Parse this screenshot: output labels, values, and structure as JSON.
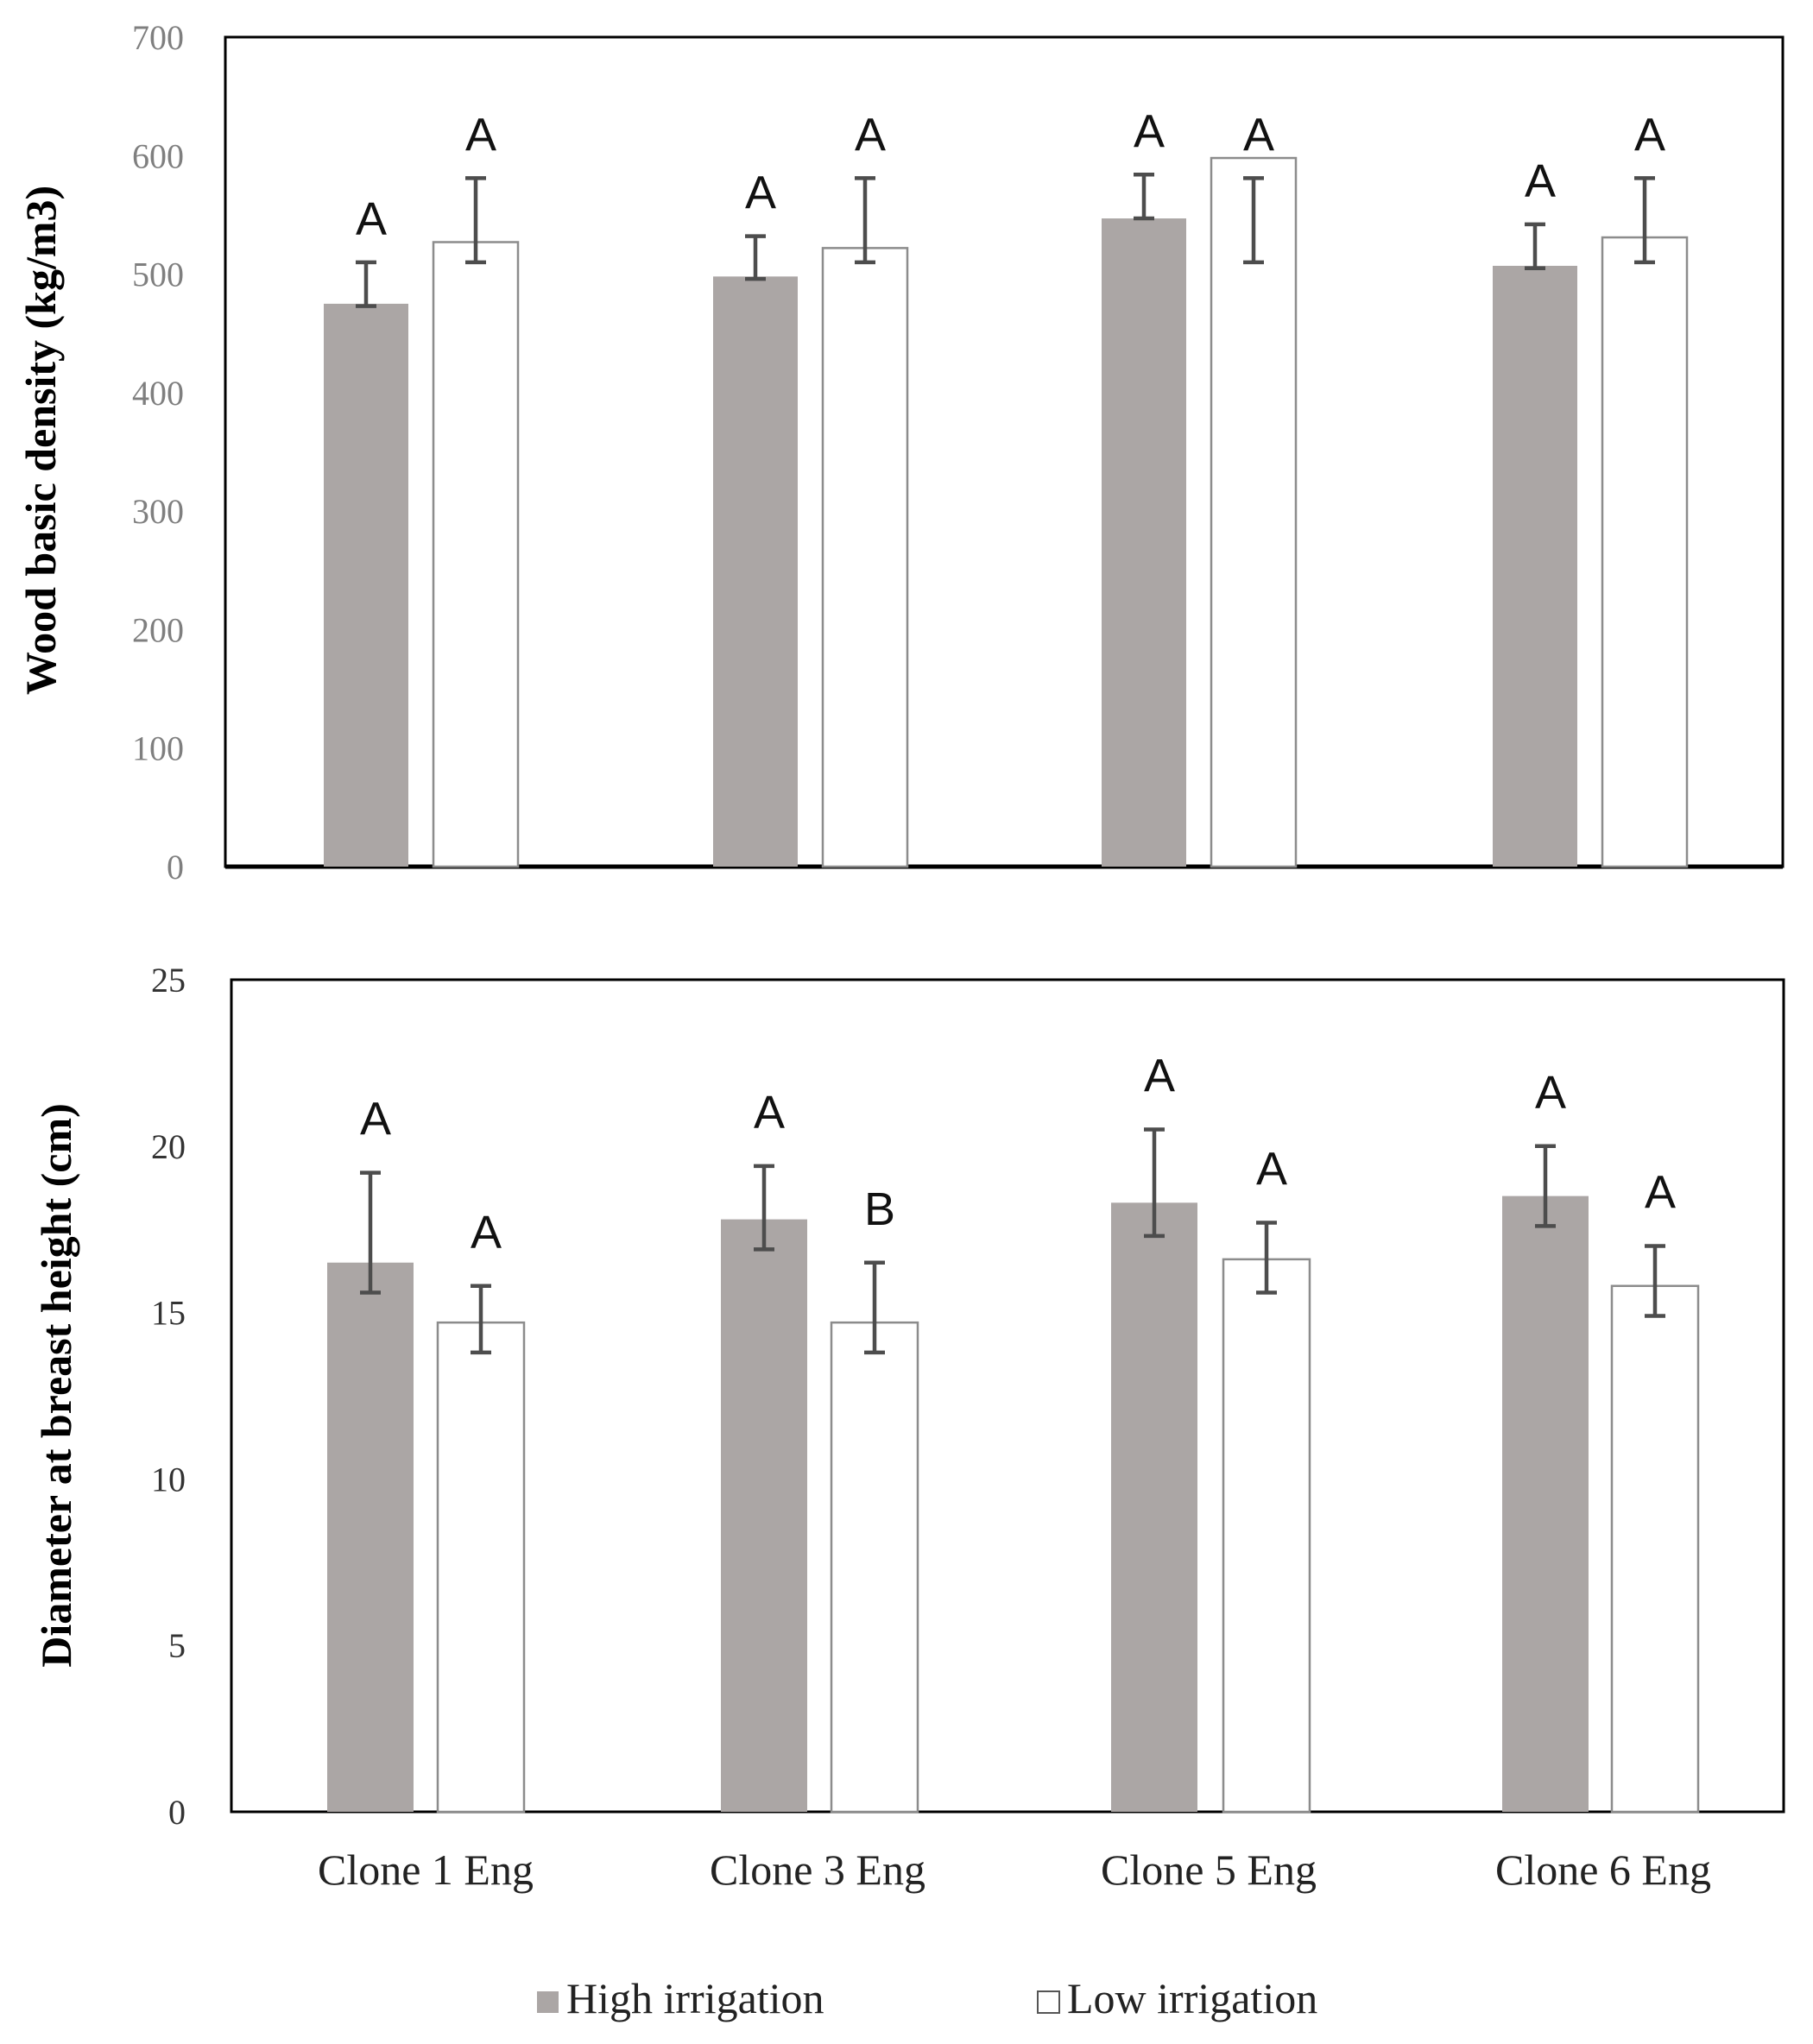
{
  "chart_data": [
    {
      "type": "bar",
      "ylabel": "Wood basic density (kg/m3)",
      "ylim": [
        0,
        700
      ],
      "yticks": [
        "0",
        "100",
        "200",
        "300",
        "400",
        "500",
        "600",
        "700"
      ],
      "categories": [
        "Clone 1 Eng",
        "Clone 3 Eng",
        "Clone 5 Eng",
        "Clone 6 Eng"
      ],
      "series": [
        {
          "name": "High irrigation",
          "color": "#aba6a5",
          "values": [
            475,
            498,
            547,
            507
          ],
          "err_low": [
            473,
            496,
            547,
            505
          ],
          "err_high": [
            510,
            532,
            584,
            542
          ],
          "letters": [
            "A",
            "A",
            "A",
            "A"
          ]
        },
        {
          "name": "Low irrigation",
          "color": "#ffffff",
          "values": [
            527,
            522,
            598,
            531
          ],
          "err_low": [
            510,
            510,
            510,
            510
          ],
          "err_high": [
            581,
            581,
            581,
            581
          ],
          "letters": [
            "A",
            "A",
            "A",
            "A"
          ]
        }
      ]
    },
    {
      "type": "bar",
      "ylabel": "Diameter at breast height (cm)",
      "ylim": [
        0,
        25
      ],
      "yticks": [
        "0",
        "5",
        "10",
        "15",
        "20",
        "25"
      ],
      "categories": [
        "Clone 1 Eng",
        "Clone 3 Eng",
        "Clone 5 Eng",
        "Clone 6 Eng"
      ],
      "series": [
        {
          "name": "High irrigation",
          "color": "#aba6a5",
          "values": [
            16.5,
            17.8,
            18.3,
            18.5
          ],
          "err_low": [
            15.6,
            16.9,
            17.3,
            17.6
          ],
          "err_high": [
            19.2,
            19.4,
            20.5,
            20.0
          ],
          "letters": [
            "A",
            "A",
            "A",
            "A"
          ]
        },
        {
          "name": "Low irrigation",
          "color": "#ffffff",
          "values": [
            14.7,
            14.7,
            16.6,
            15.8
          ],
          "err_low": [
            13.8,
            13.8,
            15.6,
            14.9
          ],
          "err_high": [
            15.8,
            16.5,
            17.7,
            17.0
          ],
          "letters": [
            "A",
            "B",
            "A",
            "A"
          ]
        }
      ]
    }
  ],
  "legend": {
    "items": [
      {
        "label": "High irrigation",
        "color": "#aba6a5"
      },
      {
        "label": "Low irrigation",
        "color": "#ffffff"
      }
    ],
    "position": "bottom"
  },
  "x_labels": [
    "Clone 1 Eng",
    "Clone 3 Eng",
    "Clone 5 Eng",
    "Clone 6 Eng"
  ]
}
